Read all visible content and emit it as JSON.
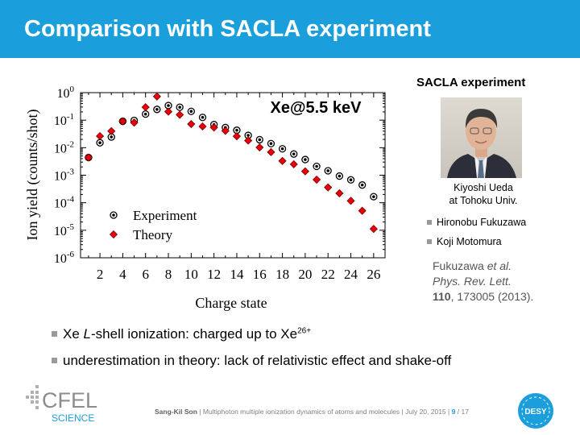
{
  "slide": {
    "title": "Comparison with SACLA experiment"
  },
  "chart_data": {
    "type": "scatter",
    "annotation": "Xe@5.5 keV",
    "xlabel": "Charge state",
    "ylabel": "Ion yield (counts/shot)",
    "x_ticks": [
      2,
      4,
      6,
      8,
      10,
      12,
      14,
      16,
      18,
      20,
      22,
      24,
      26
    ],
    "x_range": [
      0.3,
      27.0
    ],
    "y_scale": "log",
    "y_range": [
      1e-06,
      1
    ],
    "y_ticks": [
      {
        "base": "10",
        "exp": "0"
      },
      {
        "base": "10",
        "exp": "-1"
      },
      {
        "base": "10",
        "exp": "-2"
      },
      {
        "base": "10",
        "exp": "-3"
      },
      {
        "base": "10",
        "exp": "-4"
      },
      {
        "base": "10",
        "exp": "-5"
      },
      {
        "base": "10",
        "exp": "-6"
      }
    ],
    "legend_position": "bottom-left",
    "series": [
      {
        "name": "Experiment",
        "marker": "circle",
        "color": "#000000",
        "x": [
          1,
          2,
          3,
          4,
          5,
          6,
          7,
          8,
          9,
          10,
          11,
          12,
          13,
          14,
          15,
          16,
          17,
          18,
          19,
          20,
          21,
          22,
          23,
          24,
          25,
          26
        ],
        "y": [
          0.0044,
          0.0151,
          0.0245,
          0.091,
          0.098,
          0.166,
          0.246,
          0.339,
          0.295,
          0.209,
          0.126,
          0.069,
          0.054,
          0.043,
          0.028,
          0.0195,
          0.0141,
          0.0091,
          0.0059,
          0.0037,
          0.0021,
          0.00145,
          0.00093,
          0.00068,
          0.00044,
          0.000166
        ]
      },
      {
        "name": "Theory",
        "marker": "diamond",
        "color": "#e8000b",
        "x": [
          1,
          2,
          3,
          4,
          5,
          6,
          7,
          8,
          9,
          10,
          11,
          12,
          13,
          14,
          15,
          16,
          17,
          18,
          19,
          20,
          21,
          22,
          23,
          24,
          25,
          26
        ],
        "y": [
          0.0044,
          0.0263,
          0.04,
          0.091,
          0.081,
          0.295,
          0.724,
          0.204,
          0.158,
          0.072,
          0.059,
          0.054,
          0.041,
          0.026,
          0.0182,
          0.0102,
          0.0069,
          0.0033,
          0.0025,
          0.00138,
          0.00069,
          0.00036,
          0.00022,
          0.000117,
          5.1e-05,
          1.12e-05
        ]
      }
    ]
  },
  "sidebar": {
    "heading": "SACLA experiment",
    "photo_caption_line1": "Kiyoshi Ueda",
    "photo_caption_line2": "at Tohoku Univ.",
    "members": [
      "Hironobu Fukuzawa",
      "Koji Motomura"
    ],
    "ref_authors": "Fukuzawa",
    "ref_etal": "et al.",
    "ref_journal": "Phys. Rev. Lett.",
    "ref_volume": "110",
    "ref_rest": ", 173005 (2013)."
  },
  "bullets": {
    "b1_pre": "Xe ",
    "b1_italic": "L",
    "b1_mid": "-shell ionization: charged up to Xe",
    "b1_sup": "26+",
    "b2": "underestimation in theory: lack of relativistic effect and shake-off"
  },
  "footer": {
    "author": "Sang-Kil Son",
    "sep1": "|",
    "talk": "Multiphoton multiple ionization dynamics of atoms and molecules",
    "sep2": "|",
    "date": "July 20, 2015",
    "sep3": "|",
    "page": "9",
    "total": "/ 17"
  },
  "logos": {
    "left_top": "CFEL",
    "left_bottom": "SCIENCE",
    "right": "DESY"
  },
  "colors": {
    "title_bar": "#1a9fdc",
    "experiment": "#000000",
    "theory": "#e8000b",
    "reference_text": "#555555"
  }
}
